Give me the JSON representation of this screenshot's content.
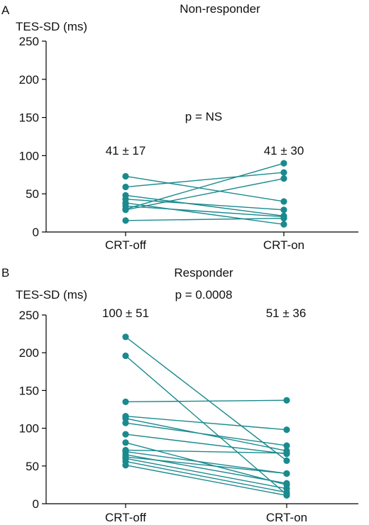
{
  "colors": {
    "series": "#1a8a8e",
    "axis": "#000000",
    "text": "#111111"
  },
  "chart_data": [
    {
      "type": "line",
      "panel_label": "A",
      "title": "Non-responder",
      "ylabel": "TES-SD (ms)",
      "categories": [
        "CRT-off",
        "CRT-on"
      ],
      "ylim": [
        0,
        250
      ],
      "yticks": [
        0,
        50,
        100,
        150,
        200,
        250
      ],
      "grid": false,
      "annotations": {
        "off_summary": "41 ± 17",
        "on_summary": "41 ± 30",
        "p_value": "p = NS"
      },
      "pairs": [
        [
          73,
          40
        ],
        [
          59,
          78
        ],
        [
          48,
          21
        ],
        [
          43,
          29
        ],
        [
          38,
          10
        ],
        [
          34,
          20
        ],
        [
          30,
          90
        ],
        [
          29,
          70
        ],
        [
          15,
          18
        ]
      ]
    },
    {
      "type": "line",
      "panel_label": "B",
      "title": "Responder",
      "ylabel": "TES-SD (ms)",
      "categories": [
        "CRT-off",
        "CRT-on"
      ],
      "ylim": [
        0,
        250
      ],
      "yticks": [
        0,
        50,
        100,
        150,
        200,
        250
      ],
      "grid": false,
      "annotations": {
        "off_summary": "100 ± 51",
        "on_summary": "51 ± 36",
        "p_value": "p = 0.0008"
      },
      "pairs": [
        [
          221,
          57
        ],
        [
          196,
          12
        ],
        [
          135,
          137
        ],
        [
          116,
          98
        ],
        [
          113,
          70
        ],
        [
          107,
          77
        ],
        [
          92,
          66
        ],
        [
          81,
          25
        ],
        [
          71,
          67
        ],
        [
          69,
          40
        ],
        [
          65,
          27
        ],
        [
          62,
          40
        ],
        [
          60,
          20
        ],
        [
          56,
          15
        ],
        [
          51,
          11
        ]
      ]
    }
  ]
}
